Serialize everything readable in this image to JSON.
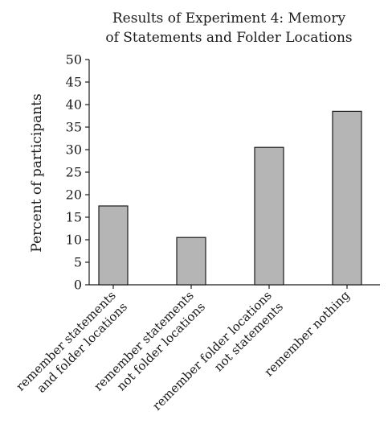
{
  "chart_data": {
    "type": "bar",
    "title_lines": [
      "Results of Experiment 4: Memory",
      "of Statements and Folder Locations"
    ],
    "xlabel": "",
    "ylabel": "Percent of participants",
    "ylim": [
      0,
      50
    ],
    "ytick_step": 5,
    "grid": false,
    "categories": [
      [
        "remember statements",
        "and folder locations"
      ],
      [
        "remember statements",
        "not folder locations"
      ],
      [
        "remember folder locations",
        "not statements"
      ],
      [
        "remember nothing"
      ]
    ],
    "values": [
      17.5,
      10.5,
      30.5,
      38.5
    ],
    "colors": {
      "bar_fill": "#b5b5b5",
      "bar_stroke": "#1a1a1a",
      "axis": "#1a1a1a",
      "text": "#1a1a1a"
    }
  }
}
